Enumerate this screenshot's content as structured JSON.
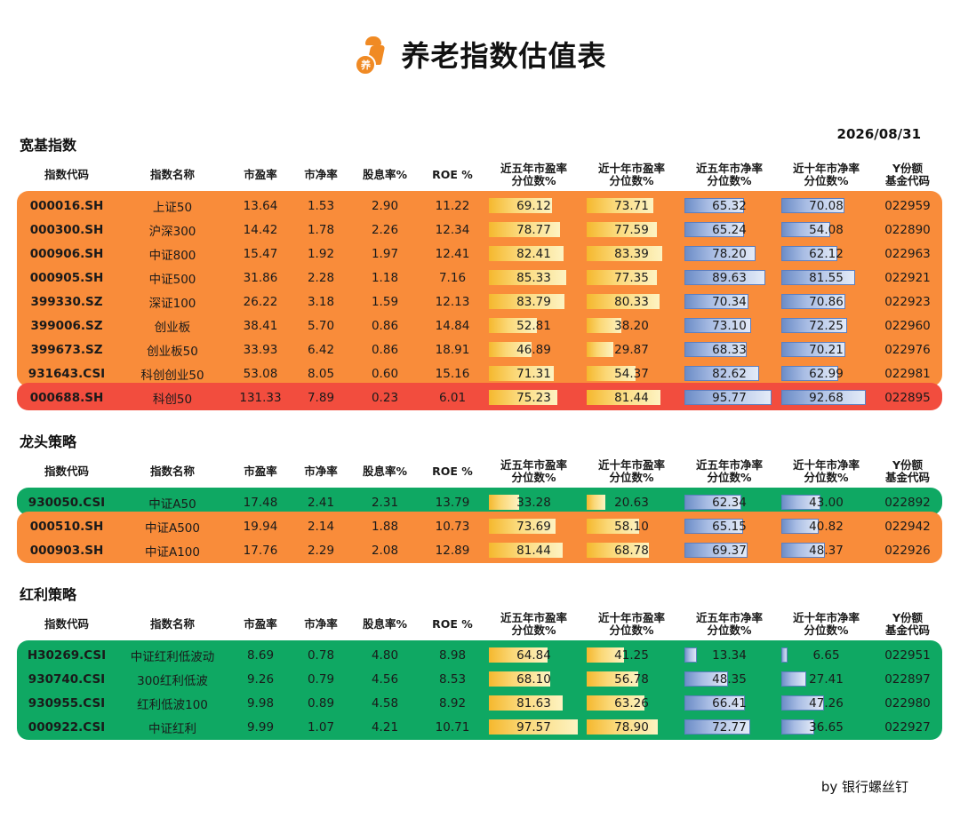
{
  "header": {
    "title": "养老指数估值表",
    "logo_text": "养",
    "date": "2026/08/31"
  },
  "columns": {
    "code": "指数代码",
    "name": "指数名称",
    "pe": "市盈率",
    "pb": "市净率",
    "dy": "股息率%",
    "roe": "ROE %",
    "pe5_l1": "近五年市盈率",
    "pe5_l2": "分位数%",
    "pe10_l1": "近十年市盈率",
    "pe10_l2": "分位数%",
    "pb5_l1": "近五年市净率",
    "pb5_l2": "分位数%",
    "pb10_l1": "近十年市净率",
    "pb10_l2": "分位数%",
    "fund_l1": "Y份额",
    "fund_l2": "基金代码"
  },
  "sections": [
    {
      "title": "宽基指数",
      "rows": [
        {
          "code": "000016.SH",
          "name": "上证50",
          "pe": "13.64",
          "pb": "1.53",
          "dy": "2.90",
          "roe": "11.22",
          "pe5": "69.12",
          "pe10": "73.71",
          "pb5": "65.32",
          "pb10": "70.08",
          "fund": "022959",
          "color": "orange"
        },
        {
          "code": "000300.SH",
          "name": "沪深300",
          "pe": "14.42",
          "pb": "1.78",
          "dy": "2.26",
          "roe": "12.34",
          "pe5": "78.77",
          "pe10": "77.59",
          "pb5": "65.24",
          "pb10": "54.08",
          "fund": "022890",
          "color": "orange"
        },
        {
          "code": "000906.SH",
          "name": "中证800",
          "pe": "15.47",
          "pb": "1.92",
          "dy": "1.97",
          "roe": "12.41",
          "pe5": "82.41",
          "pe10": "83.39",
          "pb5": "78.20",
          "pb10": "62.12",
          "fund": "022963",
          "color": "orange"
        },
        {
          "code": "000905.SH",
          "name": "中证500",
          "pe": "31.86",
          "pb": "2.28",
          "dy": "1.18",
          "roe": "7.16",
          "pe5": "85.33",
          "pe10": "77.35",
          "pb5": "89.63",
          "pb10": "81.55",
          "fund": "022921",
          "color": "orange"
        },
        {
          "code": "399330.SZ",
          "name": "深证100",
          "pe": "26.22",
          "pb": "3.18",
          "dy": "1.59",
          "roe": "12.13",
          "pe5": "83.79",
          "pe10": "80.33",
          "pb5": "70.34",
          "pb10": "70.86",
          "fund": "022923",
          "color": "orange"
        },
        {
          "code": "399006.SZ",
          "name": "创业板",
          "pe": "38.41",
          "pb": "5.70",
          "dy": "0.86",
          "roe": "14.84",
          "pe5": "52.81",
          "pe10": "38.20",
          "pb5": "73.10",
          "pb10": "72.25",
          "fund": "022960",
          "color": "orange"
        },
        {
          "code": "399673.SZ",
          "name": "创业板50",
          "pe": "33.93",
          "pb": "6.42",
          "dy": "0.86",
          "roe": "18.91",
          "pe5": "46.89",
          "pe10": "29.87",
          "pb5": "68.33",
          "pb10": "70.21",
          "fund": "022976",
          "color": "orange"
        },
        {
          "code": "931643.CSI",
          "name": "科创创业50",
          "pe": "53.08",
          "pb": "8.05",
          "dy": "0.60",
          "roe": "15.16",
          "pe5": "71.31",
          "pe10": "54.37",
          "pb5": "82.62",
          "pb10": "62.99",
          "fund": "022981",
          "color": "orange"
        },
        {
          "code": "000688.SH",
          "name": "科创50",
          "pe": "131.33",
          "pb": "7.89",
          "dy": "0.23",
          "roe": "6.01",
          "pe5": "75.23",
          "pe10": "81.44",
          "pb5": "95.77",
          "pb10": "92.68",
          "fund": "022895",
          "color": "red"
        }
      ]
    },
    {
      "title": "龙头策略",
      "rows": [
        {
          "code": "930050.CSI",
          "name": "中证A50",
          "pe": "17.48",
          "pb": "2.41",
          "dy": "2.31",
          "roe": "13.79",
          "pe5": "33.28",
          "pe10": "20.63",
          "pb5": "62.34",
          "pb10": "43.00",
          "fund": "022892",
          "color": "green"
        },
        {
          "code": "000510.SH",
          "name": "中证A500",
          "pe": "19.94",
          "pb": "2.14",
          "dy": "1.88",
          "roe": "10.73",
          "pe5": "73.69",
          "pe10": "58.10",
          "pb5": "65.15",
          "pb10": "40.82",
          "fund": "022942",
          "color": "orange"
        },
        {
          "code": "000903.SH",
          "name": "中证A100",
          "pe": "17.76",
          "pb": "2.29",
          "dy": "2.08",
          "roe": "12.89",
          "pe5": "81.44",
          "pe10": "68.78",
          "pb5": "69.37",
          "pb10": "48.37",
          "fund": "022926",
          "color": "orange"
        }
      ]
    },
    {
      "title": "红利策略",
      "rows": [
        {
          "code": "H30269.CSI",
          "name": "中证红利低波动",
          "pe": "8.69",
          "pb": "0.78",
          "dy": "4.80",
          "roe": "8.98",
          "pe5": "64.84",
          "pe10": "41.25",
          "pb5": "13.34",
          "pb10": "6.65",
          "fund": "022951",
          "color": "green"
        },
        {
          "code": "930740.CSI",
          "name": "300红利低波",
          "pe": "9.26",
          "pb": "0.79",
          "dy": "4.56",
          "roe": "8.53",
          "pe5": "68.10",
          "pe10": "56.78",
          "pb5": "48.35",
          "pb10": "27.41",
          "fund": "022897",
          "color": "green"
        },
        {
          "code": "930955.CSI",
          "name": "红利低波100",
          "pe": "9.98",
          "pb": "0.89",
          "dy": "4.58",
          "roe": "8.92",
          "pe5": "81.63",
          "pe10": "63.26",
          "pb5": "66.41",
          "pb10": "47.26",
          "fund": "022980",
          "color": "green"
        },
        {
          "code": "000922.CSI",
          "name": "中证红利",
          "pe": "9.99",
          "pb": "1.07",
          "dy": "4.21",
          "roe": "10.71",
          "pe5": "97.57",
          "pe10": "78.90",
          "pb5": "72.77",
          "pb10": "36.65",
          "fund": "022927",
          "color": "green"
        }
      ]
    }
  ],
  "footer": "by 银行螺丝钉"
}
